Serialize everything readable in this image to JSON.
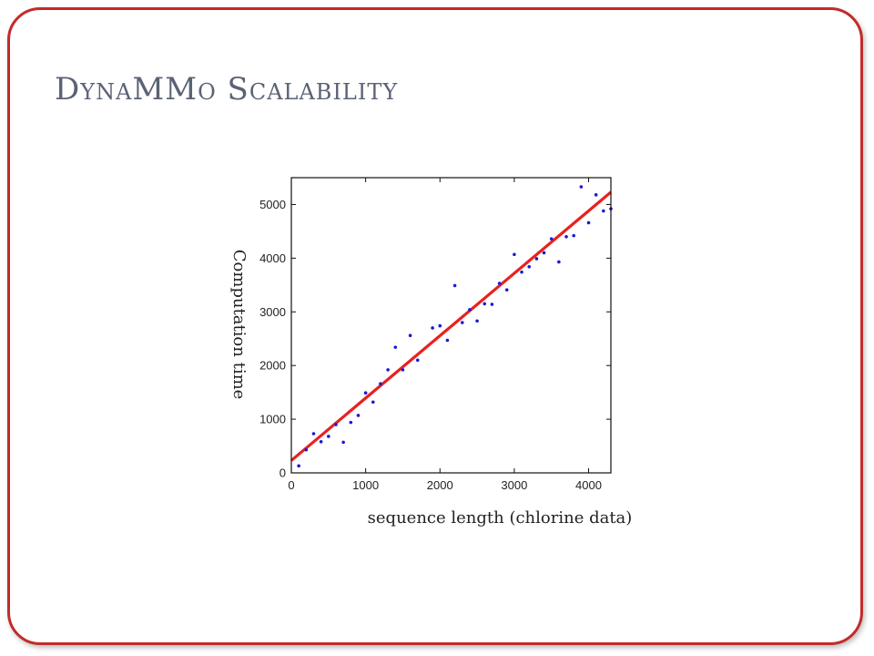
{
  "slide": {
    "title": "DynaMMo Scalability"
  },
  "colors": {
    "frame": "#c42b2b",
    "title": "#5a6275",
    "points": "#1a1ad6",
    "fit_line": "#e8211f"
  },
  "chart_data": {
    "type": "scatter",
    "title": "",
    "xlabel": "sequence length (chlorine data)",
    "ylabel": "Computation time",
    "xlim": [
      0,
      4300
    ],
    "ylim": [
      0,
      5500
    ],
    "xticks": [
      0,
      1000,
      2000,
      3000,
      4000
    ],
    "yticks": [
      0,
      1000,
      2000,
      3000,
      4000,
      5000
    ],
    "grid": false,
    "series": [
      {
        "type": "scatter",
        "x": [
          100,
          200,
          300,
          400,
          500,
          600,
          700,
          800,
          900,
          1000,
          1100,
          1200,
          1300,
          1400,
          1500,
          1600,
          1700,
          1900,
          2000,
          2100,
          2200,
          2300,
          2400,
          2500,
          2600,
          2700,
          2800,
          2900,
          3000,
          3100,
          3200,
          3300,
          3400,
          3500,
          3600,
          3700,
          3800,
          3900,
          4000,
          4100,
          4200,
          4300
        ],
        "y": [
          130,
          430,
          730,
          580,
          680,
          900,
          570,
          940,
          1070,
          1490,
          1320,
          1660,
          1920,
          2340,
          1920,
          2560,
          2100,
          2700,
          2740,
          2470,
          3490,
          2800,
          3040,
          2830,
          3150,
          3140,
          3530,
          3410,
          4070,
          3740,
          3840,
          3990,
          4100,
          4360,
          3930,
          4400,
          4420,
          5330,
          4660,
          5180,
          4880,
          4920
        ]
      },
      {
        "type": "line",
        "x": [
          0,
          4300
        ],
        "y": [
          230,
          5230
        ]
      }
    ]
  }
}
